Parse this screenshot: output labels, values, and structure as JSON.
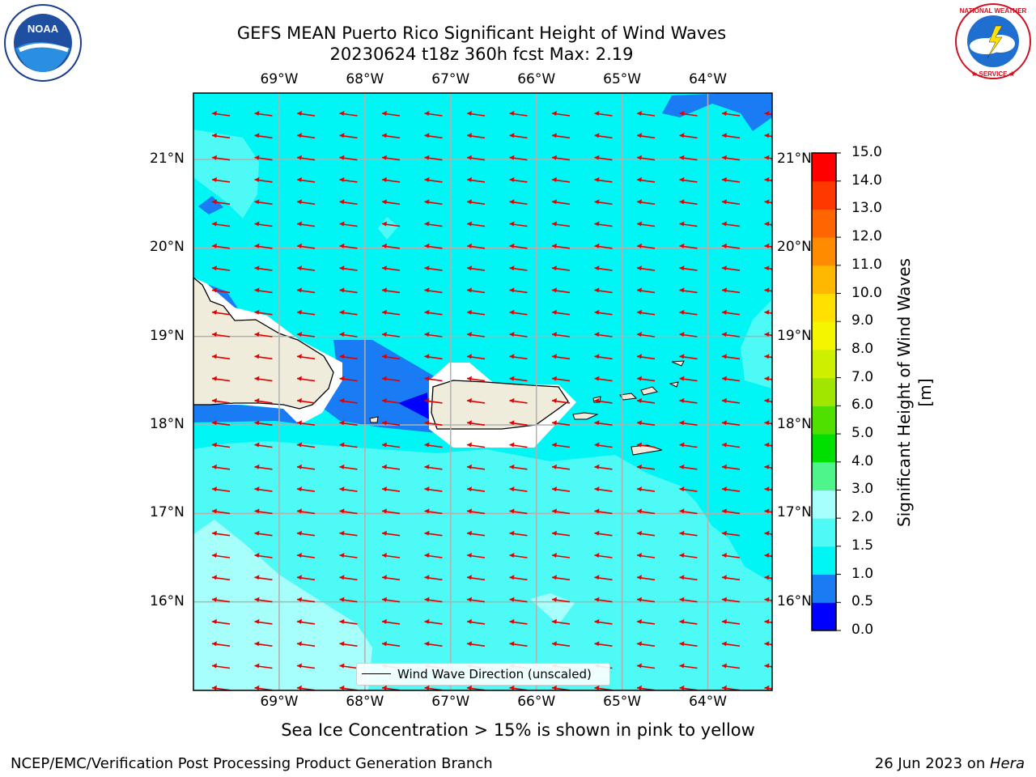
{
  "title_line1": "GEFS MEAN Puerto Rico Significant Height of Wind Waves",
  "title_line2": "20230624 t18z 360h fcst   Max: 2.19",
  "map": {
    "lon_ticks": [
      "69°W",
      "68°W",
      "67°W",
      "66°W",
      "65°W",
      "64°W"
    ],
    "lat_ticks": [
      "21°N",
      "20°N",
      "19°N",
      "18°N",
      "17°N",
      "16°N"
    ],
    "lon_range": [
      -70.0,
      -63.25
    ],
    "lat_range": [
      15.0,
      21.75
    ],
    "projection": "PlateCarree",
    "gridlines": true,
    "arrow_direction": "toward west, slightly south"
  },
  "colorbar": {
    "label": "Significant Height of Wind Waves [m]",
    "ticks": [
      "0.0",
      "0.5",
      "1.0",
      "1.5",
      "2.0",
      "3.0",
      "4.0",
      "5.0",
      "6.0",
      "7.0",
      "8.0",
      "9.0",
      "10.0",
      "11.0",
      "12.0",
      "13.0",
      "14.0",
      "15.0"
    ],
    "colors": [
      "#0000ff",
      "#1a7cf5",
      "#00f5f5",
      "#4dfaf5",
      "#a6fffa",
      "#4df58a",
      "#00e000",
      "#50e000",
      "#a0e600",
      "#ccf000",
      "#f5f500",
      "#ffe000",
      "#ffb800",
      "#ff8c00",
      "#ff6600",
      "#ff3800",
      "#ff0000"
    ]
  },
  "legend": {
    "label": "Wind Wave Direction (unscaled)"
  },
  "note": "Sea Ice Concentration > 15% is shown in pink to yellow",
  "footer_left": "NCEP/EMC/Verification Post Processing Product Generation Branch",
  "footer_right_prefix": "26 Jun 2023 on ",
  "footer_right_host": "Hera",
  "logos": {
    "left": {
      "name": "noaa-logo",
      "text": "NOAA"
    },
    "right": {
      "name": "nws-logo",
      "text": "NATIONAL WEATHER SERVICE"
    }
  },
  "colors": {
    "arrow": "#e00000",
    "land": "#f0ecdc",
    "grid": "#b0b0b0"
  }
}
